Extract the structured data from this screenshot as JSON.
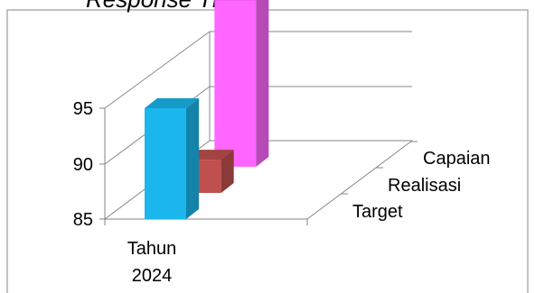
{
  "chart_data": {
    "type": "bar",
    "title": "Response Time",
    "categories": [
      "Tahun 2024"
    ],
    "category_lines": [
      "Tahun",
      "2024"
    ],
    "series": [
      {
        "name": "Target",
        "values": [
          95
        ],
        "color": "#1ab6ec"
      },
      {
        "name": "Realisasi",
        "values": [
          88
        ],
        "color": "#c0504d"
      },
      {
        "name": "Capaian",
        "values": [
          100
        ],
        "color": "#ff66ff"
      }
    ],
    "y_ticks": [
      85,
      90,
      95
    ],
    "ylim": [
      85,
      100
    ],
    "depth_labels": [
      "Target",
      "Realisasi",
      "Capaian"
    ],
    "grid": true,
    "view": "3d-column"
  }
}
